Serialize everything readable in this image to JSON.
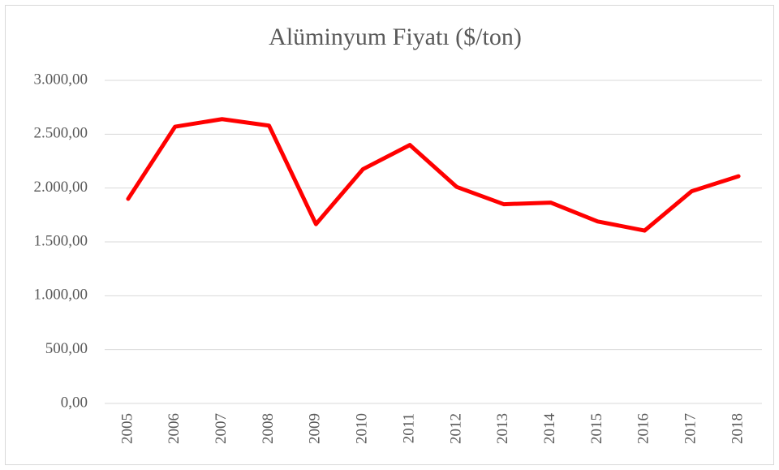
{
  "chart_data": {
    "type": "line",
    "title": "Alüminyum Fiyatı ($/ton)",
    "categories": [
      "2005",
      "2006",
      "2007",
      "2008",
      "2009",
      "2010",
      "2011",
      "2012",
      "2013",
      "2014",
      "2015",
      "2016",
      "2017",
      "2018"
    ],
    "series": [
      {
        "name": "Alüminyum Fiyatı ($/ton)",
        "color": "#ff0000",
        "values": [
          1900,
          2570,
          2640,
          2580,
          1665,
          2175,
          2400,
          2010,
          1850,
          1865,
          1690,
          1605,
          1970,
          2110
        ]
      }
    ],
    "ylim": [
      0,
      3000
    ],
    "yticks": [
      {
        "value": 0,
        "label": "0,00"
      },
      {
        "value": 500,
        "label": "500,00"
      },
      {
        "value": 1000,
        "label": "1.000,00"
      },
      {
        "value": 1500,
        "label": "1.500,00"
      },
      {
        "value": 2000,
        "label": "2.000,00"
      },
      {
        "value": 2500,
        "label": "2.500,00"
      },
      {
        "value": 3000,
        "label": "3.000,00"
      }
    ],
    "grid": true
  }
}
